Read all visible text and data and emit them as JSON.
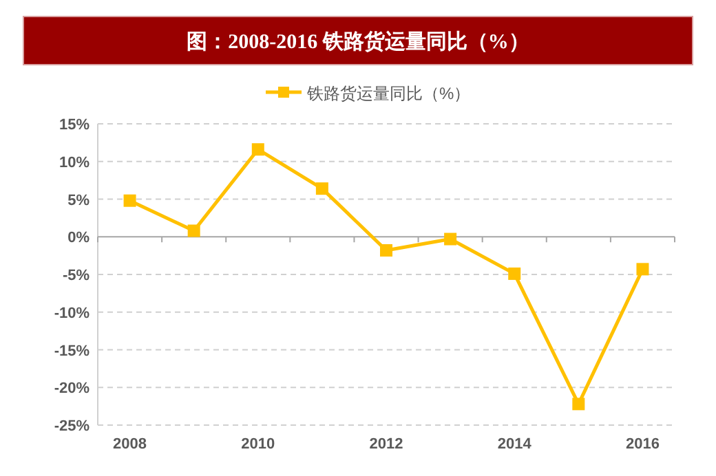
{
  "chart_data": {
    "type": "line",
    "title": "图：2008-2016 铁路货运量同比（%）",
    "categories": [
      "2008",
      null,
      "2010",
      null,
      "2012",
      null,
      "2014",
      null,
      "2016"
    ],
    "series": [
      {
        "name": "铁路货运量同比（%）",
        "color": "#ffc000",
        "values": [
          4.8,
          0.8,
          11.6,
          6.4,
          -1.8,
          -0.3,
          -4.9,
          -22.2,
          -4.3
        ]
      }
    ],
    "ylim": [
      -25,
      15
    ],
    "yticks": [
      {
        "value": -25,
        "label": "-25%"
      },
      {
        "value": -20,
        "label": "-20%"
      },
      {
        "value": -15,
        "label": "-15%"
      },
      {
        "value": -10,
        "label": "-10%"
      },
      {
        "value": -5,
        "label": "-5%"
      },
      {
        "value": 0,
        "label": "0%"
      },
      {
        "value": 5,
        "label": "5%"
      },
      {
        "value": 10,
        "label": "10%"
      },
      {
        "value": 15,
        "label": "15%"
      }
    ],
    "grid": "y",
    "legend": "top",
    "marker": "square",
    "line_style": "solid"
  }
}
